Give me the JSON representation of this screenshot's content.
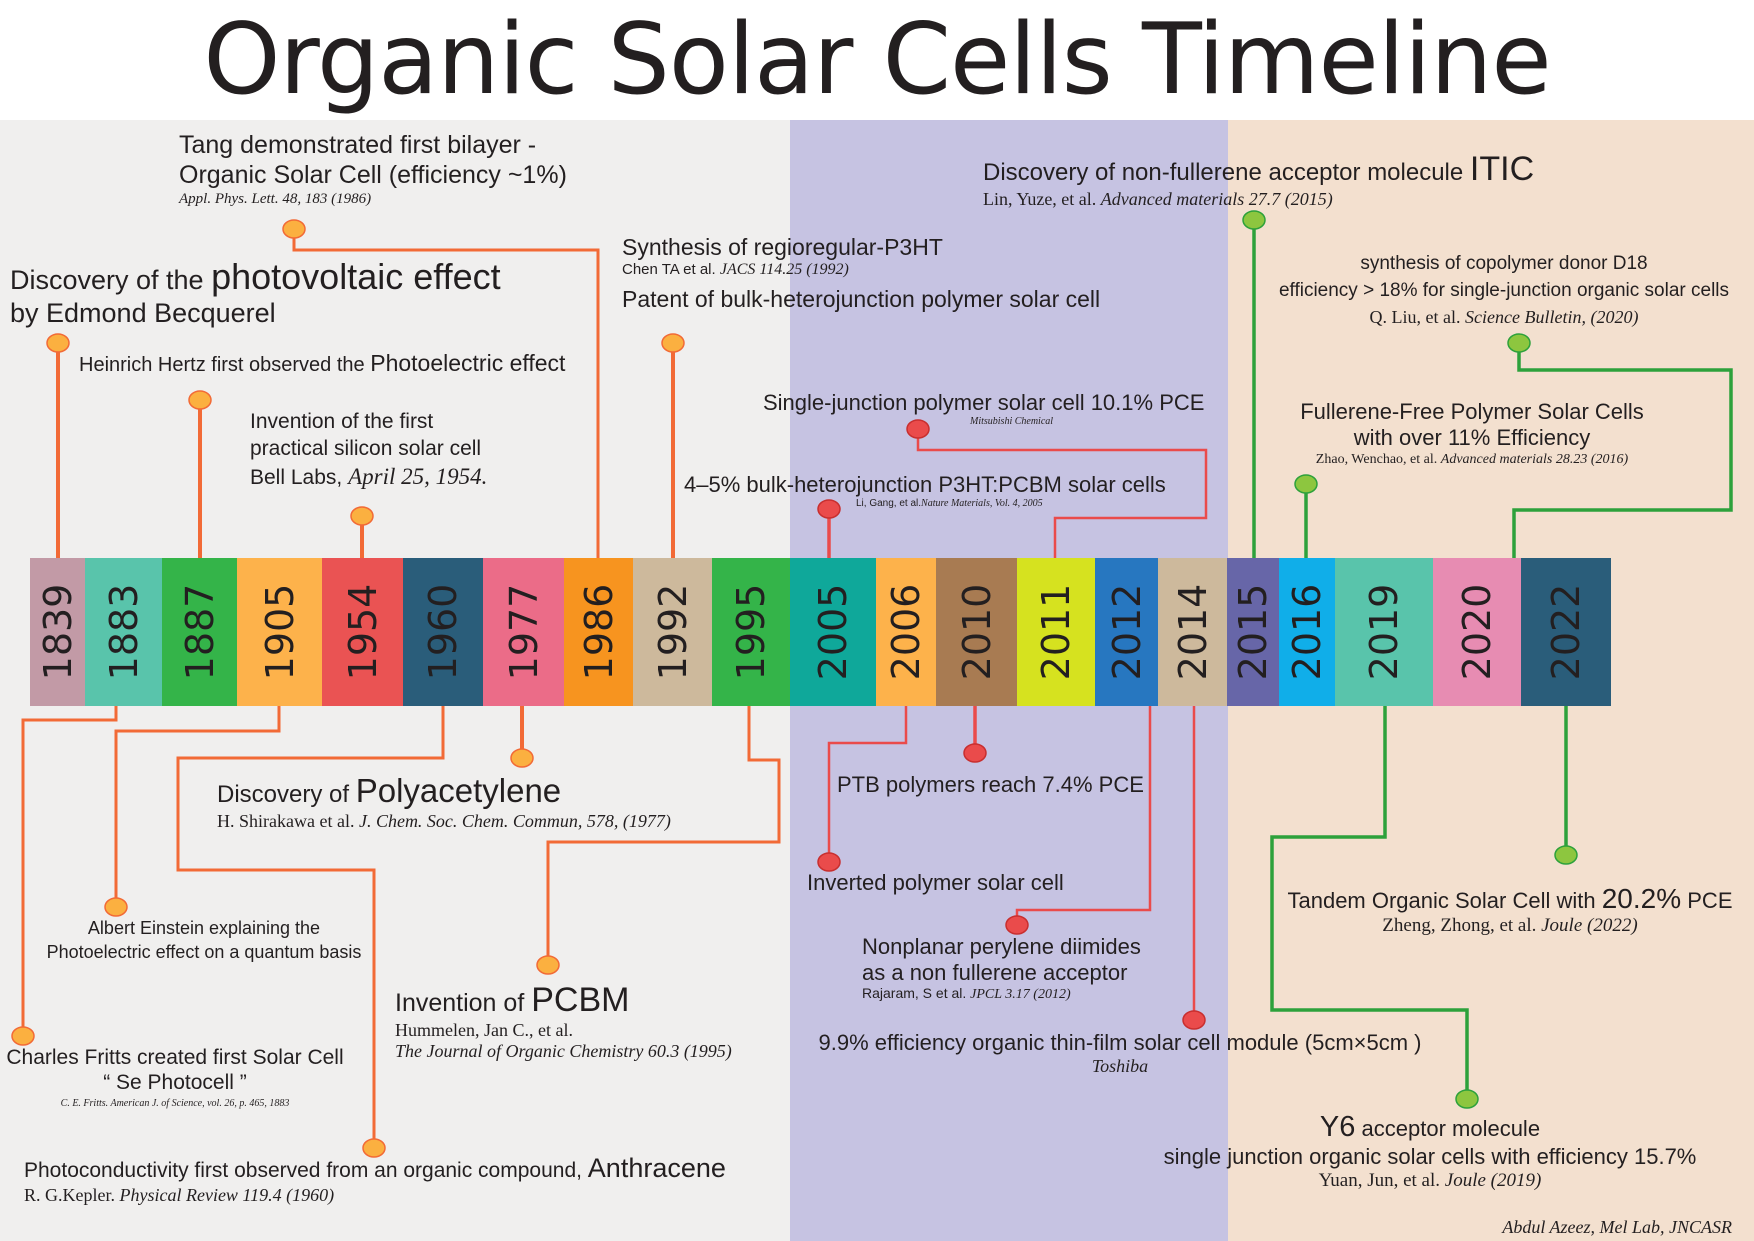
{
  "title": "Organic Solar Cells Timeline",
  "colors": {
    "left_bg": "#f0efee",
    "middle_bg": "#c6c3e2",
    "right_bg": "#f3e0cf",
    "orange_line": "#f26a36",
    "red_line": "#ea4b4b",
    "green_line": "#2da13b"
  },
  "years": [
    {
      "year": "1839",
      "color": "#c29aa6"
    },
    {
      "year": "1883",
      "color": "#59c4ab"
    },
    {
      "year": "1887",
      "color": "#34b449"
    },
    {
      "year": "1905",
      "color": "#fdb24b"
    },
    {
      "year": "1954",
      "color": "#ea5353"
    },
    {
      "year": "1960",
      "color": "#2a5d7a"
    },
    {
      "year": "1977",
      "color": "#eb6c88"
    },
    {
      "year": "1986",
      "color": "#f7941f"
    },
    {
      "year": "1992",
      "color": "#cdb99c"
    },
    {
      "year": "1995",
      "color": "#34b449"
    },
    {
      "year": "2005",
      "color": "#0fa89a"
    },
    {
      "year": "2006",
      "color": "#fdb24b"
    },
    {
      "year": "2010",
      "color": "#a87b52"
    },
    {
      "year": "2011",
      "color": "#d6e21f"
    },
    {
      "year": "2012",
      "color": "#2777c0"
    },
    {
      "year": "2014",
      "color": "#cdb99c"
    },
    {
      "year": "2015",
      "color": "#6766a8"
    },
    {
      "year": "2016",
      "color": "#10aee9"
    },
    {
      "year": "2019",
      "color": "#59c4ab"
    },
    {
      "year": "2020",
      "color": "#e78cb2"
    },
    {
      "year": "2022",
      "color": "#2a5d7a"
    }
  ],
  "events": {
    "e1839": {
      "l1a": "Discovery of the ",
      "l1b": "photovoltaic effect",
      "l2": "by Edmond Becquerel"
    },
    "e1883": {
      "l1": "Charles Fritts created first Solar Cell",
      "l2": "“ Se Photocell ”",
      "ref": "C. E. Fritts. American J. of Science, vol. 26, p. 465, 1883"
    },
    "e1887": {
      "t1": "Heinrich Hertz first observed the ",
      "t2": "Photoelectric effect"
    },
    "e1905": {
      "l1": "Albert Einstein  explaining the",
      "l2": "Photoelectric effect on a quantum basis"
    },
    "e1954": {
      "l1": "Invention of the first",
      "l2": "practical silicon solar cell",
      "l3a": "Bell Labs, ",
      "l3b": "April 25, 1954."
    },
    "e1960": {
      "t1": "Photoconductivity first observed from an organic compound, ",
      "t2": "Anthracene",
      "ref_a": "R. G.Kepler. ",
      "ref_b": "Physical Review 119.4 (1960)"
    },
    "e1977": {
      "t1": "Discovery of  ",
      "t2": "Polyacetylene",
      "ref_a": "H. Shirakawa et al. ",
      "ref_b": "J.  Chem.  Soc.  Chem. Commun,  578, (1977)"
    },
    "e1986": {
      "l1": "Tang demonstrated first bilayer -",
      "l2": "Organic Solar Cell (efficiency ~1%)",
      "ref": "Appl. Phys. Lett. 48, 183 (1986)"
    },
    "e1992": {
      "l1": "Synthesis of regioregular-P3HT",
      "ref_a": "Chen TA et al.  ",
      "ref_b": "JACS 114.25 (1992)",
      "l2": "Patent of bulk-heterojunction polymer solar cell"
    },
    "e1995": {
      "t1": "Invention of  ",
      "t2": "PCBM",
      "ref1": "Hummelen, Jan C., et al.",
      "ref2": "The Journal of Organic Chemistry 60.3 (1995)"
    },
    "e2005": {
      "l1": "4–5% bulk-heterojunction P3HT:PCBM solar cells",
      "ref_a": "Li, Gang, et al.",
      "ref_b": "Nature Materials, Vol. 4, 2005"
    },
    "e2006": {
      "l1": "Inverted polymer solar cell"
    },
    "e2010": {
      "l1": "PTB polymers reach 7.4% PCE"
    },
    "e2011": {
      "l1": "Single-junction polymer solar cell 10.1% PCE",
      "ref": "Mitsubishi Chemical"
    },
    "e2012": {
      "l1": "Nonplanar perylene diimides",
      "l2": "as a non fullerene acceptor",
      "ref_a": "Rajaram, S et al. ",
      "ref_b": "JPCL 3.17 (2012)"
    },
    "e2014": {
      "l1": "9.9% efficiency organic thin-film solar cell module (5cm×5cm )",
      "ref": "Toshiba"
    },
    "e2015": {
      "t1": "Discovery of non-fullerene acceptor molecule ",
      "t2": "ITIC",
      "ref_a": "Lin, Yuze, et al. ",
      "ref_b": "Advanced materials 27.7 (2015)"
    },
    "e2016": {
      "l1": "Fullerene-Free Polymer Solar Cells",
      "l2": "with over 11% Efficiency",
      "ref_a": "Zhao, Wenchao, et al. ",
      "ref_b": "Advanced materials 28.23 (2016)"
    },
    "e2019": {
      "t1": "Y6",
      "t2": " acceptor molecule",
      "l2": "single junction organic solar cells with efficiency 15.7%",
      "ref_a": "Yuan, Jun, et al. ",
      "ref_b": "Joule (2019)"
    },
    "e2020": {
      "l1": "synthesis of copolymer donor D18",
      "l2": "efficiency > 18% for single-junction organic solar cells",
      "ref_a": "Q. Liu,  et al. ",
      "ref_b": "Science Bulletin, (2020)"
    },
    "e2022": {
      "t1": "Tandem Organic Solar Cell with ",
      "t2": "20.2%",
      "t3": " PCE",
      "ref_a": "Zheng, Zhong, et al. ",
      "ref_b": "Joule (2022)"
    }
  },
  "credit": "Abdul Azeez, Mel Lab, JNCASR"
}
